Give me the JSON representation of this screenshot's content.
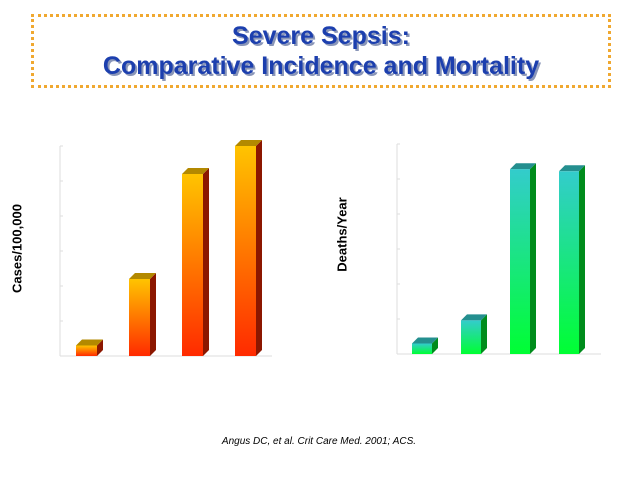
{
  "title": {
    "line1": "Severe Sepsis:",
    "line2": "Comparative Incidence and Mortality"
  },
  "citation": "Angus DC, et al. Crit Care Med. 2001; ACS.",
  "colors": {
    "title_text": "#1c3fae",
    "title_border": "#f0a830",
    "left_bar_top": "#ffc400",
    "left_bar_bottom": "#ff2a00",
    "right_bar_top": "#33cccc",
    "right_bar_bottom": "#00ff33"
  },
  "chart_data": [
    {
      "type": "bar",
      "ylabel": "Cases/100,000",
      "categories": [
        "",
        "",
        "",
        ""
      ],
      "values": [
        3,
        22,
        52,
        60
      ],
      "ylim": [
        0,
        60
      ],
      "grid": false
    },
    {
      "type": "bar",
      "ylabel": "Deaths/Year",
      "categories": [
        "",
        "",
        "",
        ""
      ],
      "values": [
        5,
        16,
        88,
        87
      ],
      "ylim": [
        0,
        100
      ],
      "grid": false
    }
  ]
}
